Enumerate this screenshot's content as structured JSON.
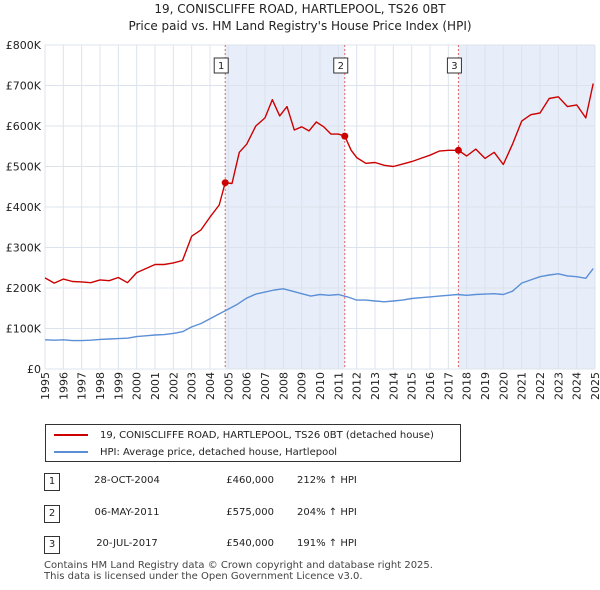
{
  "title_line1": "19, CONISCLIFFE ROAD, HARTLEPOOL, TS26 0BT",
  "title_line2": "Price paid vs. HM Land Registry's House Price Index (HPI)",
  "chart_data": {
    "type": "line",
    "title": "19, CONISCLIFFE ROAD, HARTLEPOOL, TS26 0BT — Price paid vs. HM Land Registry's House Price Index (HPI)",
    "xlabel": "",
    "ylabel": "",
    "xlim": [
      1995,
      2025
    ],
    "ylim": [
      0,
      800000
    ],
    "grid": true,
    "x_ticks": [
      "1995",
      "1996",
      "1997",
      "1998",
      "1999",
      "2000",
      "2001",
      "2002",
      "2003",
      "2004",
      "2005",
      "2006",
      "2007",
      "2008",
      "2009",
      "2010",
      "2011",
      "2012",
      "2013",
      "2014",
      "2015",
      "2016",
      "2017",
      "2018",
      "2019",
      "2020",
      "2021",
      "2022",
      "2023",
      "2024",
      "2025"
    ],
    "y_ticks": [
      {
        "value": 0,
        "label": "£0"
      },
      {
        "value": 100000,
        "label": "£100K"
      },
      {
        "value": 200000,
        "label": "£200K"
      },
      {
        "value": 300000,
        "label": "£300K"
      },
      {
        "value": 400000,
        "label": "£400K"
      },
      {
        "value": 500000,
        "label": "£500K"
      },
      {
        "value": 600000,
        "label": "£600K"
      },
      {
        "value": 700000,
        "label": "£700K"
      },
      {
        "value": 800000,
        "label": "£800K"
      }
    ],
    "shaded_periods": [
      [
        2004.83,
        2011.35
      ],
      [
        2017.55,
        2025.0
      ]
    ],
    "series": [
      {
        "name": "19, CONISCLIFFE ROAD, HARTLEPOOL, TS26 0BT (detached house)",
        "color": "#cc0000",
        "x": [
          1995.0,
          1995.5,
          1996.0,
          1996.5,
          1997.0,
          1997.5,
          1998.0,
          1998.5,
          1999.0,
          1999.5,
          2000.0,
          2000.5,
          2001.0,
          2001.5,
          2002.0,
          2002.5,
          2003.0,
          2003.5,
          2004.0,
          2004.5,
          2004.83,
          2005.2,
          2005.6,
          2006.0,
          2006.5,
          2007.0,
          2007.4,
          2007.8,
          2008.2,
          2008.6,
          2009.0,
          2009.4,
          2009.8,
          2010.2,
          2010.6,
          2011.0,
          2011.35,
          2011.7,
          2012.0,
          2012.5,
          2013.0,
          2013.5,
          2014.0,
          2014.5,
          2015.0,
          2015.5,
          2016.0,
          2016.5,
          2017.0,
          2017.55,
          2018.0,
          2018.5,
          2019.0,
          2019.5,
          2020.0,
          2020.5,
          2021.0,
          2021.5,
          2022.0,
          2022.5,
          2023.0,
          2023.5,
          2024.0,
          2024.5,
          2024.9
        ],
        "values": [
          225000,
          212000,
          222000,
          216000,
          215000,
          213000,
          220000,
          218000,
          226000,
          213000,
          238000,
          248000,
          258000,
          258000,
          262000,
          268000,
          328000,
          343000,
          375000,
          405000,
          460000,
          458000,
          535000,
          555000,
          600000,
          620000,
          665000,
          625000,
          648000,
          590000,
          598000,
          588000,
          610000,
          598000,
          580000,
          580000,
          575000,
          540000,
          522000,
          508000,
          510000,
          503000,
          500000,
          506000,
          512000,
          520000,
          528000,
          538000,
          540000,
          540000,
          526000,
          543000,
          520000,
          535000,
          505000,
          555000,
          612000,
          628000,
          632000,
          668000,
          672000,
          648000,
          652000,
          620000,
          705000
        ]
      },
      {
        "name": "HPI: Average price, detached house, Hartlepool",
        "color": "#5b8fd6",
        "x": [
          1995.0,
          1995.5,
          1996.0,
          1996.5,
          1997.0,
          1997.5,
          1998.0,
          1998.5,
          1999.0,
          1999.5,
          2000.0,
          2000.5,
          2001.0,
          2001.5,
          2002.0,
          2002.5,
          2003.0,
          2003.5,
          2004.0,
          2004.5,
          2005.0,
          2005.5,
          2006.0,
          2006.5,
          2007.0,
          2007.5,
          2008.0,
          2008.5,
          2009.0,
          2009.5,
          2010.0,
          2010.5,
          2011.0,
          2011.5,
          2012.0,
          2012.5,
          2013.0,
          2013.5,
          2014.0,
          2014.5,
          2015.0,
          2015.5,
          2016.0,
          2016.5,
          2017.0,
          2017.5,
          2018.0,
          2018.5,
          2019.0,
          2019.5,
          2020.0,
          2020.5,
          2021.0,
          2021.5,
          2022.0,
          2022.5,
          2023.0,
          2023.5,
          2024.0,
          2024.5,
          2024.9
        ],
        "values": [
          72000,
          71000,
          72000,
          70000,
          70000,
          71000,
          73000,
          74000,
          75000,
          76000,
          80000,
          82000,
          84000,
          85000,
          88000,
          92000,
          104000,
          112000,
          124000,
          136000,
          148000,
          160000,
          175000,
          185000,
          190000,
          195000,
          198000,
          192000,
          186000,
          180000,
          184000,
          182000,
          184000,
          178000,
          170000,
          170000,
          168000,
          166000,
          168000,
          170000,
          174000,
          176000,
          178000,
          180000,
          182000,
          184000,
          182000,
          184000,
          185000,
          186000,
          184000,
          192000,
          212000,
          220000,
          228000,
          232000,
          235000,
          230000,
          228000,
          224000,
          248000
        ]
      }
    ],
    "markers": [
      {
        "label": "1",
        "x": 2004.83,
        "y": 460000
      },
      {
        "label": "2",
        "x": 2011.35,
        "y": 575000
      },
      {
        "label": "3",
        "x": 2017.55,
        "y": 540000
      }
    ]
  },
  "legend": [
    {
      "label": "19, CONISCLIFFE ROAD, HARTLEPOOL, TS26 0BT (detached house)",
      "color": "#cc0000"
    },
    {
      "label": "HPI: Average price, detached house, Hartlepool",
      "color": "#5b8fd6"
    }
  ],
  "transactions": [
    {
      "num": "1",
      "date": "28-OCT-2004",
      "price": "£460,000",
      "hpi": "212% ↑ HPI"
    },
    {
      "num": "2",
      "date": "06-MAY-2011",
      "price": "£575,000",
      "hpi": "204% ↑ HPI"
    },
    {
      "num": "3",
      "date": "20-JUL-2017",
      "price": "£540,000",
      "hpi": "191% ↑ HPI"
    }
  ],
  "footer_line1": "Contains HM Land Registry data © Crown copyright and database right 2025.",
  "footer_line2": "This data is licensed under the Open Government Licence v3.0."
}
